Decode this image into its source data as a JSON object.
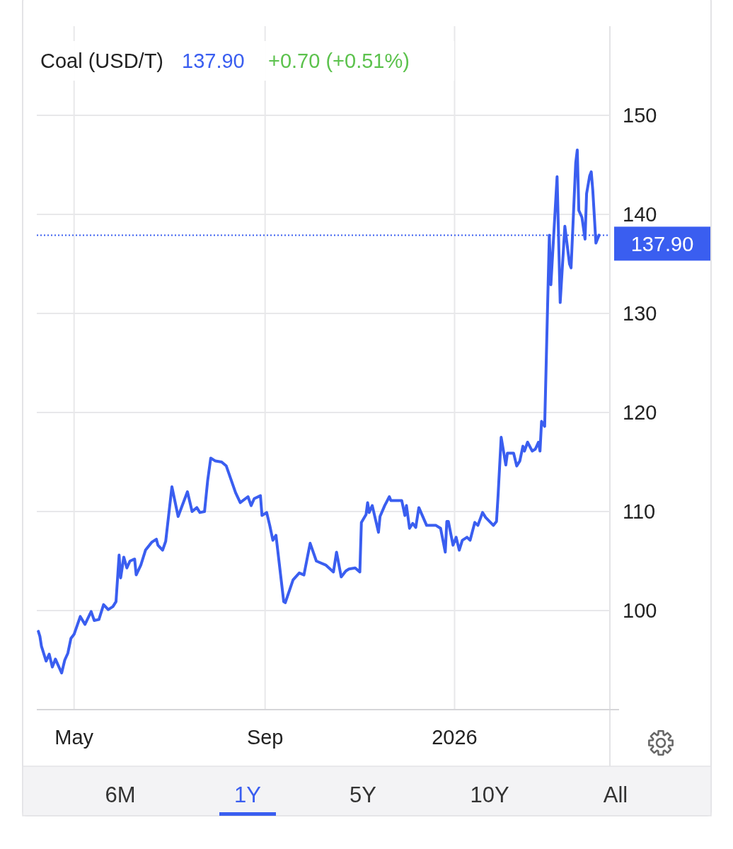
{
  "chart_data": {
    "type": "line",
    "title": "Coal (USD/T)",
    "annotations": [
      "137.90",
      "+0.70 (+0.51%)",
      "6M",
      "1Y",
      "5Y",
      "10Y",
      "All"
    ],
    "x": [
      "2025-04-08",
      "2025-04-09",
      "2025-04-10",
      "2025-04-13",
      "2025-04-15",
      "2025-04-17",
      "2025-04-19",
      "2025-04-23",
      "2025-04-25",
      "2025-04-27",
      "2025-04-29",
      "2025-05-01",
      "2025-05-05",
      "2025-05-08",
      "2025-05-12",
      "2025-05-14",
      "2025-05-17",
      "2025-05-20",
      "2025-05-23",
      "2025-05-26",
      "2025-05-28",
      "2025-05-30",
      "2025-05-31",
      "2025-06-02",
      "2025-06-04",
      "2025-06-06",
      "2025-06-09",
      "2025-06-10",
      "2025-06-13",
      "2025-06-16",
      "2025-06-20",
      "2025-06-23",
      "2025-06-24",
      "2025-06-27",
      "2025-06-29",
      "2025-07-03",
      "2025-07-07",
      "2025-07-13",
      "2025-07-16",
      "2025-07-19",
      "2025-07-21",
      "2025-07-24",
      "2025-07-26",
      "2025-07-28",
      "2025-07-31",
      "2025-08-04",
      "2025-08-07",
      "2025-08-13",
      "2025-08-16",
      "2025-08-21",
      "2025-08-23",
      "2025-08-25",
      "2025-08-29",
      "2025-08-30",
      "2025-09-02",
      "2025-09-04",
      "2025-09-06",
      "2025-09-08",
      "2025-09-13",
      "2025-09-14",
      "2025-09-19",
      "2025-09-23",
      "2025-09-26",
      "2025-09-30",
      "2025-10-04",
      "2025-10-10",
      "2025-10-15",
      "2025-10-17",
      "2025-10-20",
      "2025-10-23",
      "2025-10-25",
      "2025-10-29",
      "2025-11-01",
      "2025-11-02",
      "2025-11-05",
      "2025-11-06",
      "2025-11-07",
      "2025-11-09",
      "2025-11-13",
      "2025-11-14",
      "2025-11-17",
      "2025-11-20",
      "2025-11-21",
      "2025-11-26",
      "2025-11-28",
      "2025-11-30",
      "2025-12-01",
      "2025-12-03",
      "2025-12-05",
      "2025-12-07",
      "2025-12-09",
      "2025-12-14",
      "2025-12-20",
      "2025-12-23",
      "2025-12-26",
      "2025-12-27",
      "2025-12-28",
      "2025-12-31",
      "2026-01-02",
      "2026-01-04",
      "2026-01-06",
      "2026-01-09",
      "2026-01-11",
      "2026-01-14",
      "2026-01-16",
      "2026-01-19",
      "2026-01-21",
      "2026-01-26",
      "2026-01-28",
      "2026-01-29",
      "2026-01-31",
      "2026-02-03",
      "2026-02-04",
      "2026-02-08",
      "2026-02-10",
      "2026-02-12",
      "2026-02-14",
      "2026-02-15",
      "2026-02-17",
      "2026-02-20",
      "2026-02-22",
      "2026-02-24",
      "2026-02-25",
      "2026-02-26",
      "2026-02-28",
      "2026-03-03",
      "2026-03-04",
      "2026-03-08",
      "2026-03-10",
      "2026-03-13",
      "2026-03-16",
      "2026-03-17",
      "2026-03-20",
      "2026-03-21",
      "2026-03-22",
      "2026-03-24",
      "2026-03-26",
      "2026-03-27",
      "2026-03-29",
      "2026-03-30",
      "2026-03-31",
      "2026-04-02",
      "2026-04-04"
    ],
    "series": [
      {
        "color": "#3a5ef0",
        "values": [
          97.9,
          97.4,
          96.4,
          94.9,
          95.6,
          94.3,
          95.1,
          93.7,
          95.0,
          95.7,
          97.2,
          97.6,
          99.4,
          98.6,
          99.9,
          99.0,
          99.1,
          100.6,
          100.1,
          100.4,
          100.9,
          105.6,
          103.3,
          105.4,
          104.3,
          105.0,
          105.2,
          103.6,
          104.6,
          106.1,
          106.9,
          107.2,
          106.6,
          106.1,
          107.0,
          112.5,
          109.5,
          112.0,
          110.0,
          110.4,
          109.9,
          110.0,
          113.1,
          115.4,
          115.1,
          115.0,
          114.6,
          111.9,
          110.9,
          111.5,
          110.6,
          111.3,
          111.6,
          109.6,
          109.9,
          108.6,
          107.1,
          107.6,
          100.9,
          100.8,
          103.1,
          103.8,
          103.6,
          106.8,
          105.0,
          104.6,
          103.9,
          105.9,
          103.4,
          104.0,
          104.2,
          104.3,
          103.9,
          108.9,
          109.7,
          110.9,
          109.9,
          110.6,
          107.9,
          109.5,
          110.6,
          111.5,
          111.1,
          111.1,
          111.1,
          109.6,
          110.6,
          108.3,
          108.8,
          108.4,
          110.4,
          108.6,
          108.6,
          108.3,
          105.9,
          109.0,
          109.0,
          106.6,
          107.4,
          106.1,
          107.1,
          107.4,
          107.1,
          108.9,
          108.6,
          109.9,
          109.4,
          108.6,
          109.0,
          111.6,
          117.5,
          114.7,
          115.9,
          115.9,
          114.6,
          115.1,
          116.6,
          116.1,
          117.0,
          116.1,
          116.3,
          117.0,
          116.1,
          119.1,
          118.6,
          137.9,
          132.9,
          143.8,
          131.1,
          138.8,
          135.0,
          134.6,
          145.2,
          146.5,
          140.4,
          139.7,
          137.5,
          142.1,
          143.9,
          144.3,
          142.4,
          137.1,
          137.9
        ]
      }
    ],
    "xlim": [
      "2025-04-07",
      "2026-04-11"
    ],
    "xticks": [
      {
        "value": "2025-05-01",
        "label": "May"
      },
      {
        "value": "2025-09-01",
        "label": "Sep"
      },
      {
        "value": "2026-01-01",
        "label": "2026"
      }
    ],
    "ylim": [
      90,
      159
    ],
    "yticks": [
      100,
      110,
      120,
      130,
      140,
      150
    ],
    "grid": true,
    "marker": "none",
    "line_style": "solid",
    "ref_lines": [
      {
        "axis": "y",
        "value": 137.9,
        "label": "137.90",
        "color": "#3a5ef0",
        "line_style": "dotted"
      }
    ]
  }
}
